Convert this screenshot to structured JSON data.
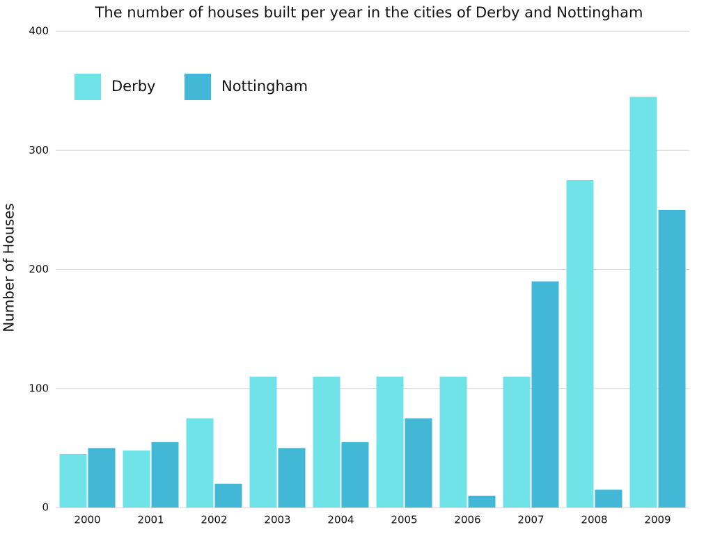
{
  "chart_data": {
    "type": "bar",
    "title": "The number of houses built per year in the cities of Derby and Nottingham",
    "y_label": "Number of Houses",
    "categories": [
      "2000",
      "2001",
      "2002",
      "2003",
      "2004",
      "2005",
      "2006",
      "2007",
      "2008",
      "2009"
    ],
    "series": [
      {
        "name": "Derby",
        "color": "#6fe3e8",
        "values": [
          45,
          48,
          75,
          110,
          110,
          110,
          110,
          110,
          275,
          345
        ]
      },
      {
        "name": "Nottingham",
        "color": "#42b8d6",
        "values": [
          50,
          55,
          20,
          50,
          55,
          75,
          10,
          190,
          15,
          250
        ]
      }
    ],
    "ylim": [
      0,
      400
    ],
    "yticks": [
      0,
      100,
      200,
      300,
      400
    ],
    "grid": true,
    "legend": "top-left"
  }
}
